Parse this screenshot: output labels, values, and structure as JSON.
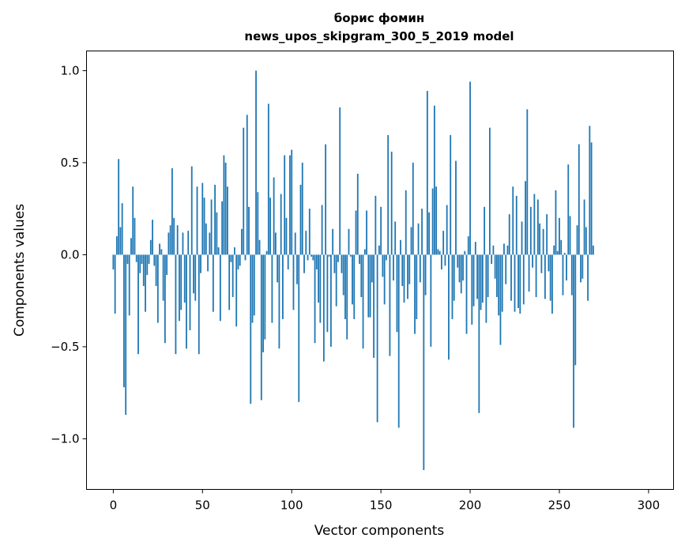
{
  "chart_data": {
    "type": "bar",
    "title": "борис фомин",
    "subtitle": "news_upos_skipgram_300_5_2019 model",
    "xlabel": "Vector components",
    "ylabel": "Components values",
    "xlim": [
      -15,
      314
    ],
    "ylim": [
      -1.275,
      1.107
    ],
    "xticks": [
      0,
      50,
      100,
      150,
      200,
      250,
      300
    ],
    "xtick_labels": [
      "0",
      "50",
      "100",
      "150",
      "200",
      "250",
      "300"
    ],
    "yticks": [
      1.0,
      0.5,
      0.0,
      -0.5,
      -1.0
    ],
    "ytick_labels": [
      "1.0",
      "0.5",
      "0.0",
      "−0.5",
      "−1.0"
    ],
    "grid": false,
    "color": "#1f77b4",
    "values": [
      -0.08,
      -0.32,
      0.1,
      0.52,
      0.15,
      0.28,
      -0.72,
      -0.87,
      -0.05,
      -0.33,
      0.09,
      0.37,
      0.2,
      -0.04,
      -0.54,
      -0.1,
      -0.05,
      -0.17,
      -0.31,
      -0.11,
      -0.05,
      0.08,
      0.19,
      -0.06,
      -0.17,
      -0.37,
      0.06,
      0.03,
      -0.25,
      -0.48,
      -0.11,
      0.12,
      0.16,
      0.47,
      0.2,
      -0.54,
      0.16,
      -0.36,
      -0.3,
      0.12,
      -0.26,
      -0.51,
      0.13,
      -0.41,
      0.48,
      -0.21,
      -0.25,
      0.37,
      -0.54,
      -0.1,
      0.39,
      0.31,
      0.17,
      -0.09,
      0.12,
      0.3,
      -0.31,
      0.38,
      0.23,
      0.04,
      -0.36,
      0.29,
      0.54,
      0.5,
      0.37,
      -0.3,
      -0.04,
      -0.23,
      0.04,
      -0.39,
      -0.08,
      -0.06,
      0.14,
      0.69,
      -0.03,
      0.76,
      0.26,
      -0.81,
      -0.37,
      -0.33,
      1.0,
      0.34,
      0.08,
      -0.79,
      -0.53,
      -0.46,
      0.02,
      0.82,
      0.31,
      -0.37,
      0.42,
      0.12,
      -0.15,
      -0.51,
      0.33,
      -0.35,
      0.54,
      0.2,
      -0.08,
      0.54,
      0.57,
      -0.3,
      0.12,
      -0.16,
      -0.8,
      0.38,
      0.5,
      -0.1,
      0.13,
      -0.03,
      0.25,
      -0.01,
      -0.03,
      -0.48,
      -0.08,
      -0.26,
      -0.37,
      0.27,
      -0.58,
      0.6,
      -0.42,
      -0.01,
      -0.5,
      0.14,
      -0.1,
      -0.28,
      -0.04,
      0.8,
      -0.1,
      -0.22,
      -0.35,
      -0.46,
      0.14,
      -0.01,
      -0.27,
      -0.35,
      0.24,
      0.44,
      -0.05,
      -0.23,
      -0.51,
      0.03,
      0.24,
      -0.34,
      -0.34,
      -0.15,
      -0.56,
      0.32,
      -0.91,
      0.05,
      0.26,
      -0.12,
      -0.27,
      -0.03,
      0.65,
      -0.55,
      0.56,
      -0.14,
      0.18,
      -0.42,
      -0.94,
      0.08,
      -0.17,
      -0.26,
      0.35,
      -0.24,
      -0.16,
      0.15,
      0.5,
      -0.43,
      -0.35,
      0.17,
      -0.15,
      0.25,
      -1.17,
      -0.22,
      0.89,
      0.23,
      -0.5,
      0.36,
      0.81,
      0.37,
      0.03,
      0.02,
      -0.08,
      0.13,
      -0.06,
      0.27,
      -0.57,
      0.65,
      -0.35,
      -0.25,
      0.51,
      -0.07,
      -0.15,
      -0.21,
      -0.14,
      0.02,
      -0.43,
      0.1,
      0.94,
      -0.38,
      -0.28,
      0.07,
      -0.24,
      -0.86,
      -0.3,
      -0.26,
      0.26,
      -0.37,
      -0.23,
      0.69,
      -0.05,
      0.05,
      -0.13,
      -0.23,
      -0.33,
      -0.49,
      -0.31,
      0.06,
      -0.16,
      0.05,
      0.22,
      -0.25,
      0.37,
      -0.31,
      0.32,
      -0.29,
      -0.32,
      0.18,
      -0.27,
      0.4,
      0.79,
      -0.2,
      0.26,
      -0.07,
      0.33,
      -0.23,
      0.3,
      0.17,
      -0.1,
      0.14,
      -0.24,
      0.22,
      -0.09,
      -0.25,
      -0.32,
      0.05,
      0.35,
      0.02,
      0.2,
      0.08,
      -0.22,
      0.01,
      -0.14,
      0.49,
      0.21,
      -0.22,
      -0.94,
      -0.6,
      0.16,
      0.6,
      -0.15,
      -0.13,
      0.3,
      0.15,
      -0.25,
      0.7,
      0.61,
      0.05
    ]
  }
}
